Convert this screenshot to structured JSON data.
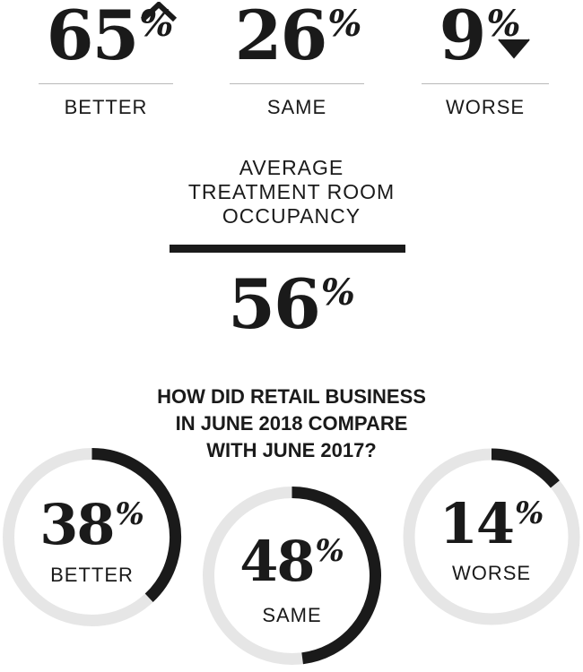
{
  "treatment": {
    "better": {
      "value": "65",
      "percent_sign": "%",
      "label": "BETTER"
    },
    "same": {
      "value": "26",
      "percent_sign": "%",
      "label": "SAME"
    },
    "worse": {
      "value": "9",
      "percent_sign": "%",
      "label": "WORSE"
    }
  },
  "occupancy": {
    "title_lines": [
      "AVERAGE",
      "TREATMENT ROOM",
      "OCCUPANCY"
    ],
    "value": "56",
    "percent_sign": "%"
  },
  "retail": {
    "question_lines": [
      "HOW DID RETAIL BUSINESS",
      "IN JUNE 2018 COMPARE",
      "WITH JUNE 2017?"
    ],
    "rings": [
      {
        "value": "38",
        "percent_sign": "%",
        "label": "BETTER",
        "fraction": 0.38
      },
      {
        "value": "48",
        "percent_sign": "%",
        "label": "SAME",
        "fraction": 0.48
      },
      {
        "value": "14",
        "percent_sign": "%",
        "label": "WORSE",
        "fraction": 0.14
      }
    ]
  },
  "colors": {
    "ink": "#1a1a1a",
    "track": "#e6e6e6",
    "rule": "#b9b9b9"
  }
}
